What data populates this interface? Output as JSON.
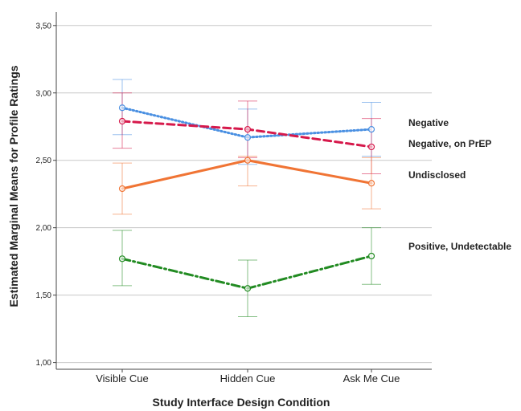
{
  "chart_data": {
    "type": "line",
    "xlabel": "Study Interface Design Condition",
    "ylabel": "Estimated Marginal Means for Profile Ratings",
    "categories": [
      "Visible Cue",
      "Hidden Cue",
      "Ask Me Cue"
    ],
    "ylim": [
      0.95,
      3.6
    ],
    "yticks": [
      "1,00",
      "1,50",
      "2,00",
      "2,50",
      "3,00",
      "3,50"
    ],
    "ytick_values": [
      1.0,
      1.5,
      2.0,
      2.5,
      3.0,
      3.5
    ],
    "grid": "horizontal",
    "legend_placement": "right",
    "series": [
      {
        "name": "Negative",
        "color": "#4a90e2",
        "dash": "dotted",
        "values": [
          2.89,
          2.67,
          2.73
        ],
        "error_low": [
          2.69,
          2.47,
          2.53
        ],
        "error_high": [
          3.1,
          2.88,
          2.93
        ]
      },
      {
        "name": "Negative, on PrEP",
        "color": "#d6194b",
        "dash": "dashed",
        "values": [
          2.79,
          2.73,
          2.6
        ],
        "error_low": [
          2.59,
          2.52,
          2.4
        ],
        "error_high": [
          3.0,
          2.94,
          2.81
        ]
      },
      {
        "name": "Undisclosed",
        "color": "#f07434",
        "dash": "solid",
        "values": [
          2.29,
          2.5,
          2.33
        ],
        "error_low": [
          2.1,
          2.31,
          2.14
        ],
        "error_high": [
          2.48,
          2.53,
          2.52
        ]
      },
      {
        "name": "Positive, Undetectable",
        "color": "#228b22",
        "dash": "dashdot",
        "values": [
          1.77,
          1.55,
          1.79
        ],
        "error_low": [
          1.57,
          1.34,
          1.58
        ],
        "error_high": [
          1.98,
          1.76,
          2.0
        ]
      }
    ]
  }
}
